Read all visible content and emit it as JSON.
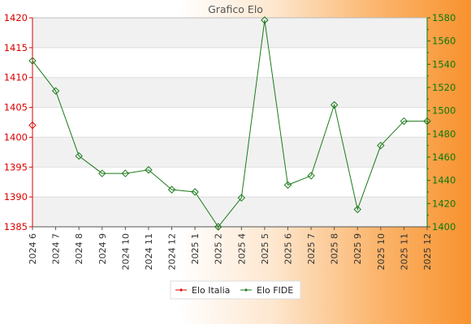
{
  "chart_data": {
    "type": "line",
    "title": "Grafico Elo",
    "categories": [
      "2024 6",
      "2024 7",
      "2024 8",
      "2024 9",
      "2024 10",
      "2024 11",
      "2024 12",
      "2025 1",
      "2025 2",
      "2025 4",
      "2025 5",
      "2025 6",
      "2025 7",
      "2025 8",
      "2025 9",
      "2025 10",
      "2025 11",
      "2025 12"
    ],
    "left_axis": {
      "ylim": [
        1385,
        1420
      ],
      "ticks": [
        1385,
        1390,
        1395,
        1400,
        1405,
        1410,
        1415,
        1420
      ],
      "color": "#dd0000"
    },
    "right_axis": {
      "ylim": [
        1400,
        1580
      ],
      "ticks": [
        1400,
        1420,
        1440,
        1460,
        1480,
        1500,
        1520,
        1540,
        1560,
        1580
      ],
      "color": "#0b7a0b"
    },
    "series": [
      {
        "name": "Elo Italia",
        "axis": "left",
        "color": "#dd0000",
        "values": [
          1402,
          null,
          null,
          null,
          null,
          null,
          null,
          null,
          null,
          null,
          null,
          null,
          null,
          null,
          null,
          null,
          null,
          null
        ]
      },
      {
        "name": "Elo FIDE",
        "axis": "right",
        "color": "#1a7a1a",
        "values": [
          1543,
          1517,
          1461,
          1446,
          1446,
          1449,
          1432,
          1430,
          1400,
          1425,
          1578,
          1436,
          1444,
          1505,
          1415,
          1470,
          1491,
          1491
        ]
      }
    ],
    "grid": true,
    "legend": "bottom"
  }
}
